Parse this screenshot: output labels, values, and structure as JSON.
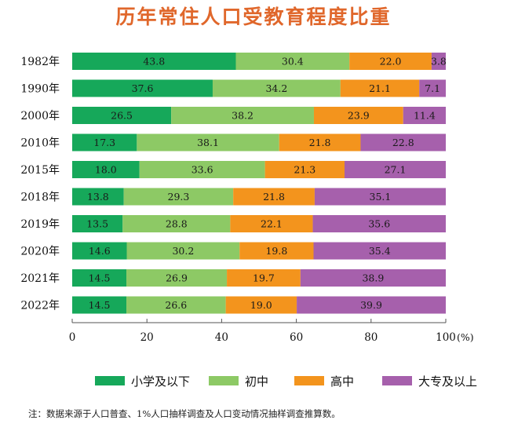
{
  "chart_data": {
    "type": "bar",
    "orientation": "horizontal",
    "stacked": true,
    "title": "历年常住人口受教育程度比重",
    "title_color": "#e0672b",
    "categories": [
      "1982年",
      "1990年",
      "2000年",
      "2010年",
      "2015年",
      "2018年",
      "2019年",
      "2020年",
      "2021年",
      "2022年"
    ],
    "series": [
      {
        "name": "小学及以下",
        "color": "#16a85a",
        "values": [
          43.8,
          37.6,
          26.5,
          17.3,
          18.0,
          13.8,
          13.5,
          14.6,
          14.5,
          14.5
        ]
      },
      {
        "name": "初中",
        "color": "#8dc965",
        "values": [
          30.4,
          34.2,
          38.2,
          38.1,
          33.6,
          29.3,
          28.8,
          30.2,
          26.9,
          26.6
        ]
      },
      {
        "name": "高中",
        "color": "#f3941d",
        "values": [
          22.0,
          21.1,
          23.9,
          21.8,
          21.3,
          21.8,
          22.1,
          19.8,
          19.7,
          19.0
        ]
      },
      {
        "name": "大专及以上",
        "color": "#a660ac",
        "values": [
          3.8,
          7.1,
          11.4,
          22.8,
          27.1,
          35.1,
          35.6,
          35.4,
          38.9,
          39.9
        ]
      }
    ],
    "xlim": [
      0,
      100
    ],
    "xticks": [
      0,
      20,
      40,
      60,
      80,
      100
    ],
    "xunit": "(%)",
    "grid": false,
    "legend_position": "bottom",
    "note": "注：数据来源于人口普查、1%人口抽样调查及人口变动情况抽样调查推算数。"
  }
}
